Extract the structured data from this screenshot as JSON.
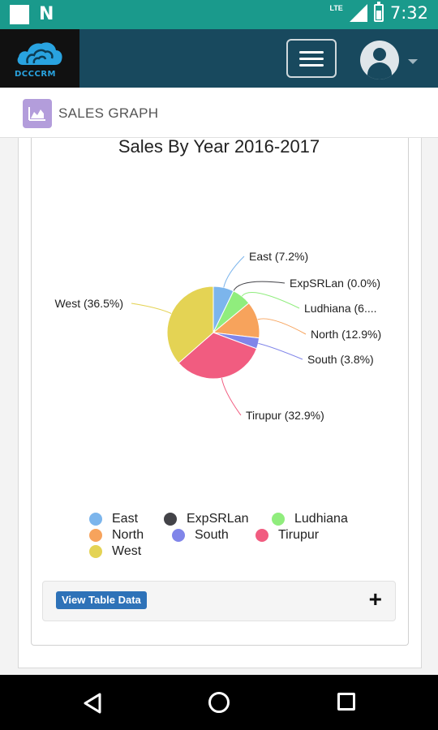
{
  "status_bar": {
    "time": "7:32",
    "network": "LTE",
    "icons": [
      "notification-box-icon",
      "n-app-icon",
      "lte-signal-icon",
      "battery-icon"
    ]
  },
  "header": {
    "logo_text": "DCCCRM",
    "menu_icon": "hamburger-icon",
    "avatar_icon": "user-avatar-icon"
  },
  "page": {
    "title": "SALES GRAPH",
    "title_icon": "area-chart-icon"
  },
  "chart_data": {
    "type": "pie",
    "title": "Sales By Year 2016-2017",
    "slices": [
      {
        "label": "East",
        "percent": 7.2,
        "display": "East (7.2%)",
        "color": "#7cb5ec"
      },
      {
        "label": "ExpSRLan",
        "percent": 0.0,
        "display": "ExpSRLan (0.0%)",
        "color": "#434348"
      },
      {
        "label": "Ludhiana",
        "percent": 6.8,
        "display": "Ludhiana (6....",
        "color": "#90ed7d"
      },
      {
        "label": "North",
        "percent": 12.9,
        "display": "North (12.9%)",
        "color": "#f7a35c"
      },
      {
        "label": "South",
        "percent": 3.8,
        "display": "South (3.8%)",
        "color": "#8085e9"
      },
      {
        "label": "Tirupur",
        "percent": 32.9,
        "display": "Tirupur (32.9%)",
        "color": "#f15c80"
      },
      {
        "label": "West",
        "percent": 36.5,
        "display": "West (36.5%)",
        "color": "#e4d354"
      }
    ],
    "legend_placement": "bottom"
  },
  "table_bar": {
    "button_label": "View Table Data",
    "expand_icon": "plus-icon"
  },
  "nav": {
    "icons": [
      "back-icon",
      "home-icon",
      "recent-apps-icon"
    ]
  }
}
